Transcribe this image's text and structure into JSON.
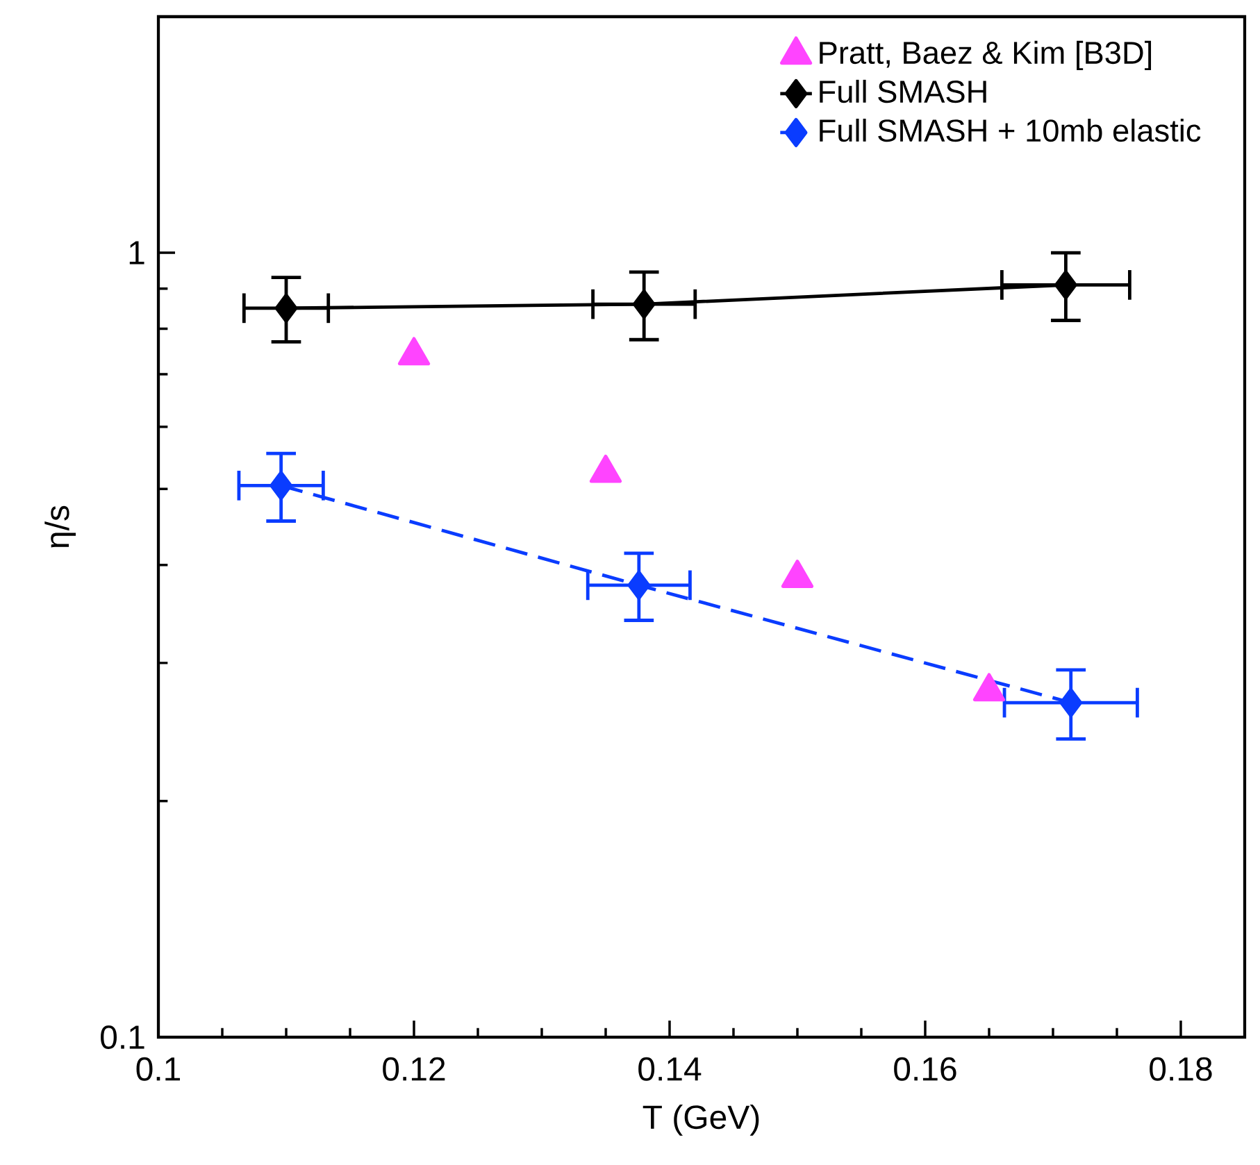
{
  "chart_data": {
    "type": "line",
    "xlabel": "T (GeV)",
    "ylabel": "η/s",
    "xlim": [
      0.1,
      0.185
    ],
    "xticks": [
      0.1,
      0.12,
      0.14,
      0.16,
      0.18
    ],
    "ylim": [
      0.1,
      2
    ],
    "yticks": [
      0.1,
      1
    ],
    "log": "y",
    "grid": false,
    "legend": "top right",
    "series": [
      {
        "name": "Pratt, Baez & Kim [B3D]",
        "type": "scatter",
        "color": "#ff44ff",
        "marker": "triangle",
        "x": [
          0.12,
          0.135,
          0.15,
          0.165
        ],
        "values": [
          0.74,
          0.524,
          0.385,
          0.276
        ]
      },
      {
        "name": "Full SMASH",
        "color": "#000000",
        "marker": "diamond",
        "line_style": "solid",
        "x": [
          0.11,
          0.138,
          0.171
        ],
        "values": [
          0.85,
          0.86,
          0.91
        ],
        "errors": [
          0.08,
          0.085,
          0.09
        ],
        "xerrors": [
          0.0033,
          0.004,
          0.005
        ]
      },
      {
        "name": "Full SMASH + 10mb elastic",
        "color": "#0a3cff",
        "marker": "diamond",
        "line_style": "dashed",
        "x": [
          0.1096,
          0.1376,
          0.1714
        ],
        "values": [
          0.505,
          0.377,
          0.267
        ],
        "errors": [
          0.05,
          0.037,
          0.027
        ],
        "xerrors": [
          0.0033,
          0.004,
          0.0052
        ]
      }
    ]
  }
}
